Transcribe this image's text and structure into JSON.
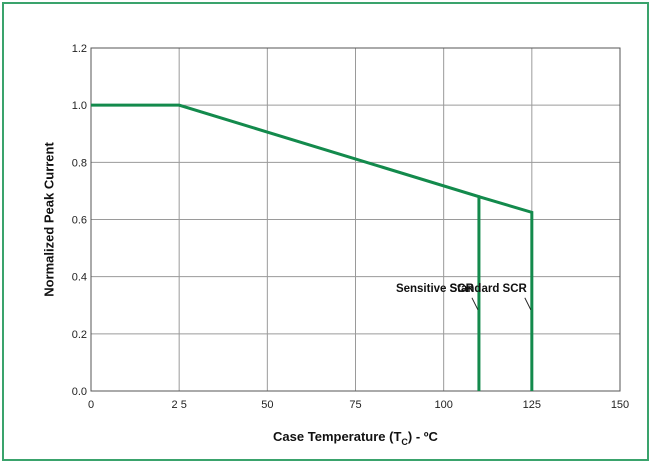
{
  "chart_data": {
    "type": "line",
    "xlabel_main": "Case Temperature (T",
    "xlabel_sub": "C",
    "xlabel_tail": ") - ºC",
    "ylabel": "Normalized Peak Current",
    "xlim": [
      0,
      150
    ],
    "ylim": [
      0,
      1.2
    ],
    "x_ticks": [
      0,
      25,
      50,
      75,
      100,
      125,
      150
    ],
    "x_tick_labels": [
      "0",
      "2 5",
      "50",
      "75",
      "100",
      "125",
      "150"
    ],
    "y_ticks": [
      0,
      0.2,
      0.4,
      0.6,
      0.8,
      1.0,
      1.2
    ],
    "y_tick_labels": [
      "0.0",
      "0.2",
      "0.4",
      "0.6",
      "0.8",
      "1.0",
      "1.2"
    ],
    "grid": true,
    "series": [
      {
        "x": [
          0,
          25,
          110,
          110
        ],
        "y": [
          1.0,
          1.0,
          0.68,
          0.0
        ]
      },
      {
        "x": [
          110,
          125,
          125
        ],
        "y": [
          0.68,
          0.625,
          0.0
        ]
      }
    ],
    "annotations": [
      {
        "text": "Sensitive SCR",
        "x": 110,
        "y": 0.34
      },
      {
        "text": "Standard SCR",
        "x": 125,
        "y": 0.34
      }
    ],
    "line_color": "#138a4c",
    "frame_color": "#3aa36c"
  }
}
